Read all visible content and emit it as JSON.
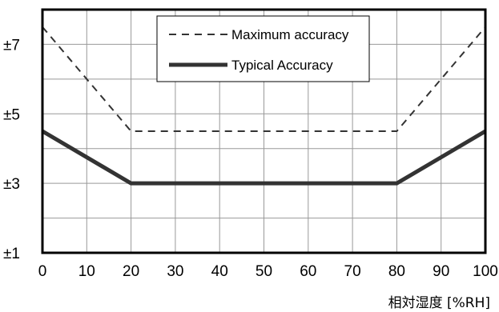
{
  "chart_data": {
    "type": "line",
    "title": "",
    "xlabel": "相対湿度 [%RH]",
    "ylabel": "",
    "xlim": [
      0,
      100
    ],
    "ylim": [
      1,
      8
    ],
    "grid": true,
    "legend_position": "top-center",
    "x_ticks": [
      0,
      10,
      20,
      30,
      40,
      50,
      60,
      70,
      80,
      90,
      100
    ],
    "x_tick_labels": [
      "0",
      "10",
      "20",
      "30",
      "40",
      "50",
      "60",
      "70",
      "80",
      "90",
      "100"
    ],
    "y_ticks": [
      1,
      3,
      5,
      7
    ],
    "y_tick_labels": [
      "±1",
      "±3",
      "±5",
      "±7"
    ],
    "series": [
      {
        "name": "Maximum accuracy",
        "style": "dashed",
        "color": "#333333",
        "x": [
          0,
          20,
          80,
          100
        ],
        "y": [
          7.5,
          4.5,
          4.5,
          7.5
        ]
      },
      {
        "name": "Typical Accuracy",
        "style": "solid",
        "color": "#333333",
        "x": [
          0,
          20,
          80,
          100
        ],
        "y": [
          4.5,
          3,
          3,
          4.5
        ]
      }
    ]
  }
}
